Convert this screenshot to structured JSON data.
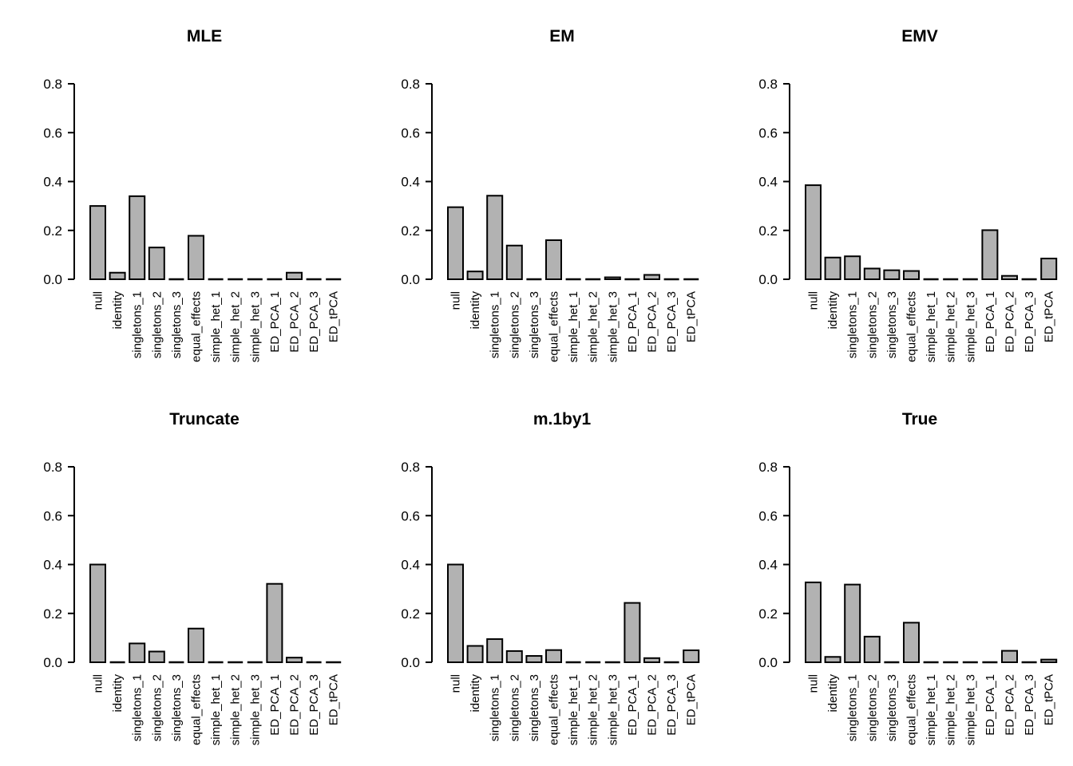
{
  "figure": {
    "background": "#ffffff",
    "text_color": "#000000",
    "axis_color": "#000000",
    "bar_fill": "#b2b2b2",
    "bar_stroke": "#000000",
    "rows": 2,
    "cols": 3
  },
  "chart_data": [
    {
      "type": "bar",
      "title": "MLE",
      "categories": [
        "null",
        "identity",
        "singletons_1",
        "singletons_2",
        "singletons_3",
        "equal_effects",
        "simple_het_1",
        "simple_het_2",
        "simple_het_3",
        "ED_PCA_1",
        "ED_PCA_2",
        "ED_PCA_3",
        "ED_tPCA"
      ],
      "values": [
        0.3,
        0.027,
        0.34,
        0.13,
        0,
        0.178,
        0,
        0,
        0,
        0,
        0.027,
        0,
        0
      ],
      "xlabel": "",
      "ylabel": "",
      "ylim": [
        0,
        0.8
      ],
      "yticks": [
        "0.0",
        "0.2",
        "0.4",
        "0.6",
        "0.8"
      ],
      "grid": false,
      "legend": "none"
    },
    {
      "type": "bar",
      "title": "EM",
      "categories": [
        "null",
        "identity",
        "singletons_1",
        "singletons_2",
        "singletons_3",
        "equal_effects",
        "simple_het_1",
        "simple_het_2",
        "simple_het_3",
        "ED_PCA_1",
        "ED_PCA_2",
        "ED_PCA_3",
        "ED_tPCA"
      ],
      "values": [
        0.295,
        0.032,
        0.342,
        0.138,
        0,
        0.16,
        0,
        0,
        0.008,
        0,
        0.018,
        0,
        0
      ],
      "xlabel": "",
      "ylabel": "",
      "ylim": [
        0,
        0.8
      ],
      "yticks": [
        "0.0",
        "0.2",
        "0.4",
        "0.6",
        "0.8"
      ],
      "grid": false,
      "legend": "none"
    },
    {
      "type": "bar",
      "title": "EMV",
      "categories": [
        "null",
        "identity",
        "singletons_1",
        "singletons_2",
        "singletons_3",
        "equal_effects",
        "simple_het_1",
        "simple_het_2",
        "simple_het_3",
        "ED_PCA_1",
        "ED_PCA_2",
        "ED_PCA_3",
        "ED_tPCA"
      ],
      "values": [
        0.385,
        0.089,
        0.094,
        0.044,
        0.037,
        0.034,
        0,
        0,
        0,
        0.201,
        0.014,
        0,
        0.085
      ],
      "xlabel": "",
      "ylabel": "",
      "ylim": [
        0,
        0.8
      ],
      "yticks": [
        "0.0",
        "0.2",
        "0.4",
        "0.6",
        "0.8"
      ],
      "grid": false,
      "legend": "none"
    },
    {
      "type": "bar",
      "title": "Truncate",
      "categories": [
        "null",
        "identity",
        "singletons_1",
        "singletons_2",
        "singletons_3",
        "equal_effects",
        "simple_het_1",
        "simple_het_2",
        "simple_het_3",
        "ED_PCA_1",
        "ED_PCA_2",
        "ED_PCA_3",
        "ED_tPCA"
      ],
      "values": [
        0.4,
        0,
        0.077,
        0.044,
        0,
        0.138,
        0,
        0,
        0,
        0.321,
        0.019,
        0,
        0
      ],
      "xlabel": "",
      "ylabel": "",
      "ylim": [
        0,
        0.8
      ],
      "yticks": [
        "0.0",
        "0.2",
        "0.4",
        "0.6",
        "0.8"
      ],
      "grid": false,
      "legend": "none"
    },
    {
      "type": "bar",
      "title": "m.1by1",
      "categories": [
        "null",
        "identity",
        "singletons_1",
        "singletons_2",
        "singletons_3",
        "equal_effects",
        "simple_het_1",
        "simple_het_2",
        "simple_het_3",
        "ED_PCA_1",
        "ED_PCA_2",
        "ED_PCA_3",
        "ED_tPCA"
      ],
      "values": [
        0.4,
        0.067,
        0.095,
        0.046,
        0.026,
        0.05,
        0,
        0,
        0,
        0.243,
        0.017,
        0,
        0.049
      ],
      "xlabel": "",
      "ylabel": "",
      "ylim": [
        0,
        0.8
      ],
      "yticks": [
        "0.0",
        "0.2",
        "0.4",
        "0.6",
        "0.8"
      ],
      "grid": false,
      "legend": "none"
    },
    {
      "type": "bar",
      "title": "True",
      "categories": [
        "null",
        "identity",
        "singletons_1",
        "singletons_2",
        "singletons_3",
        "equal_effects",
        "simple_het_1",
        "simple_het_2",
        "simple_het_3",
        "ED_PCA_1",
        "ED_PCA_2",
        "ED_PCA_3",
        "ED_tPCA"
      ],
      "values": [
        0.327,
        0.022,
        0.318,
        0.105,
        0,
        0.162,
        0,
        0,
        0,
        0,
        0.047,
        0,
        0.011
      ],
      "xlabel": "",
      "ylabel": "",
      "ylim": [
        0,
        0.8
      ],
      "yticks": [
        "0.0",
        "0.2",
        "0.4",
        "0.6",
        "0.8"
      ],
      "grid": false,
      "legend": "none"
    }
  ]
}
